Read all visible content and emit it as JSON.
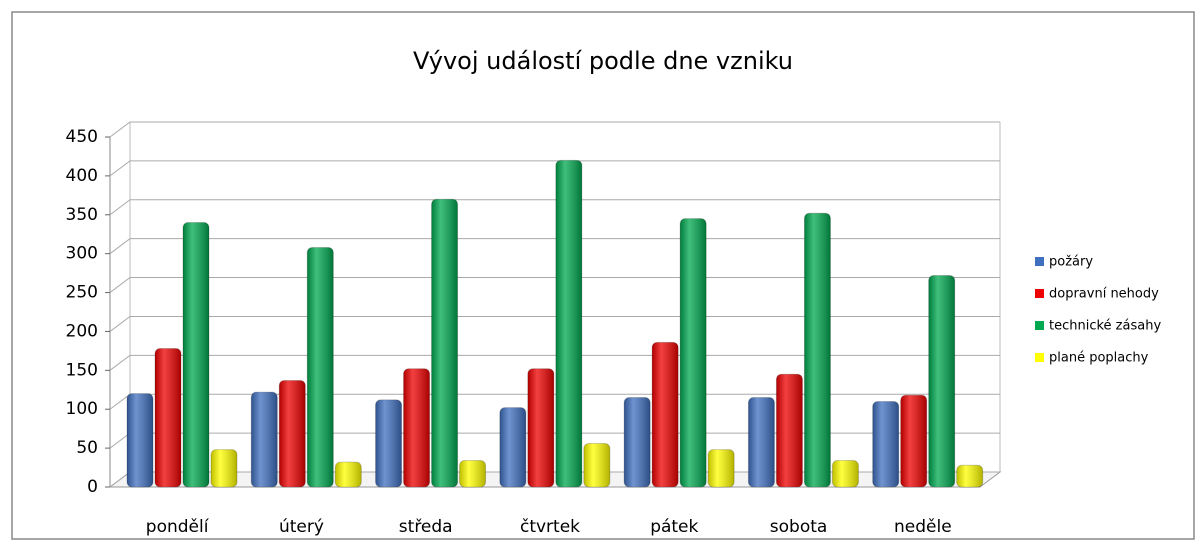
{
  "chart_data": {
    "type": "bar",
    "title": "Vývoj událostí podle dne vzniku",
    "categories": [
      "pondělí",
      "úterý",
      "středa",
      "čtvrtek",
      "pátek",
      "sobota",
      "neděle"
    ],
    "series": [
      {
        "name": "požáry",
        "color": "#3f6fbf",
        "values": [
          120,
          122,
          112,
          102,
          115,
          115,
          110
        ]
      },
      {
        "name": "dopravní nehody",
        "color": "#ee0000",
        "values": [
          178,
          137,
          152,
          152,
          186,
          145,
          118
        ]
      },
      {
        "name": "technické zásahy",
        "color": "#00a84f",
        "values": [
          340,
          308,
          370,
          420,
          345,
          352,
          272
        ]
      },
      {
        "name": "plané poplachy",
        "color": "#ffff00",
        "values": [
          48,
          32,
          34,
          56,
          48,
          34,
          28
        ]
      }
    ],
    "ylim": [
      0,
      450
    ],
    "yticks": [
      0,
      50,
      100,
      150,
      200,
      250,
      300,
      350,
      400,
      450
    ],
    "grid": true,
    "legend": "right"
  }
}
